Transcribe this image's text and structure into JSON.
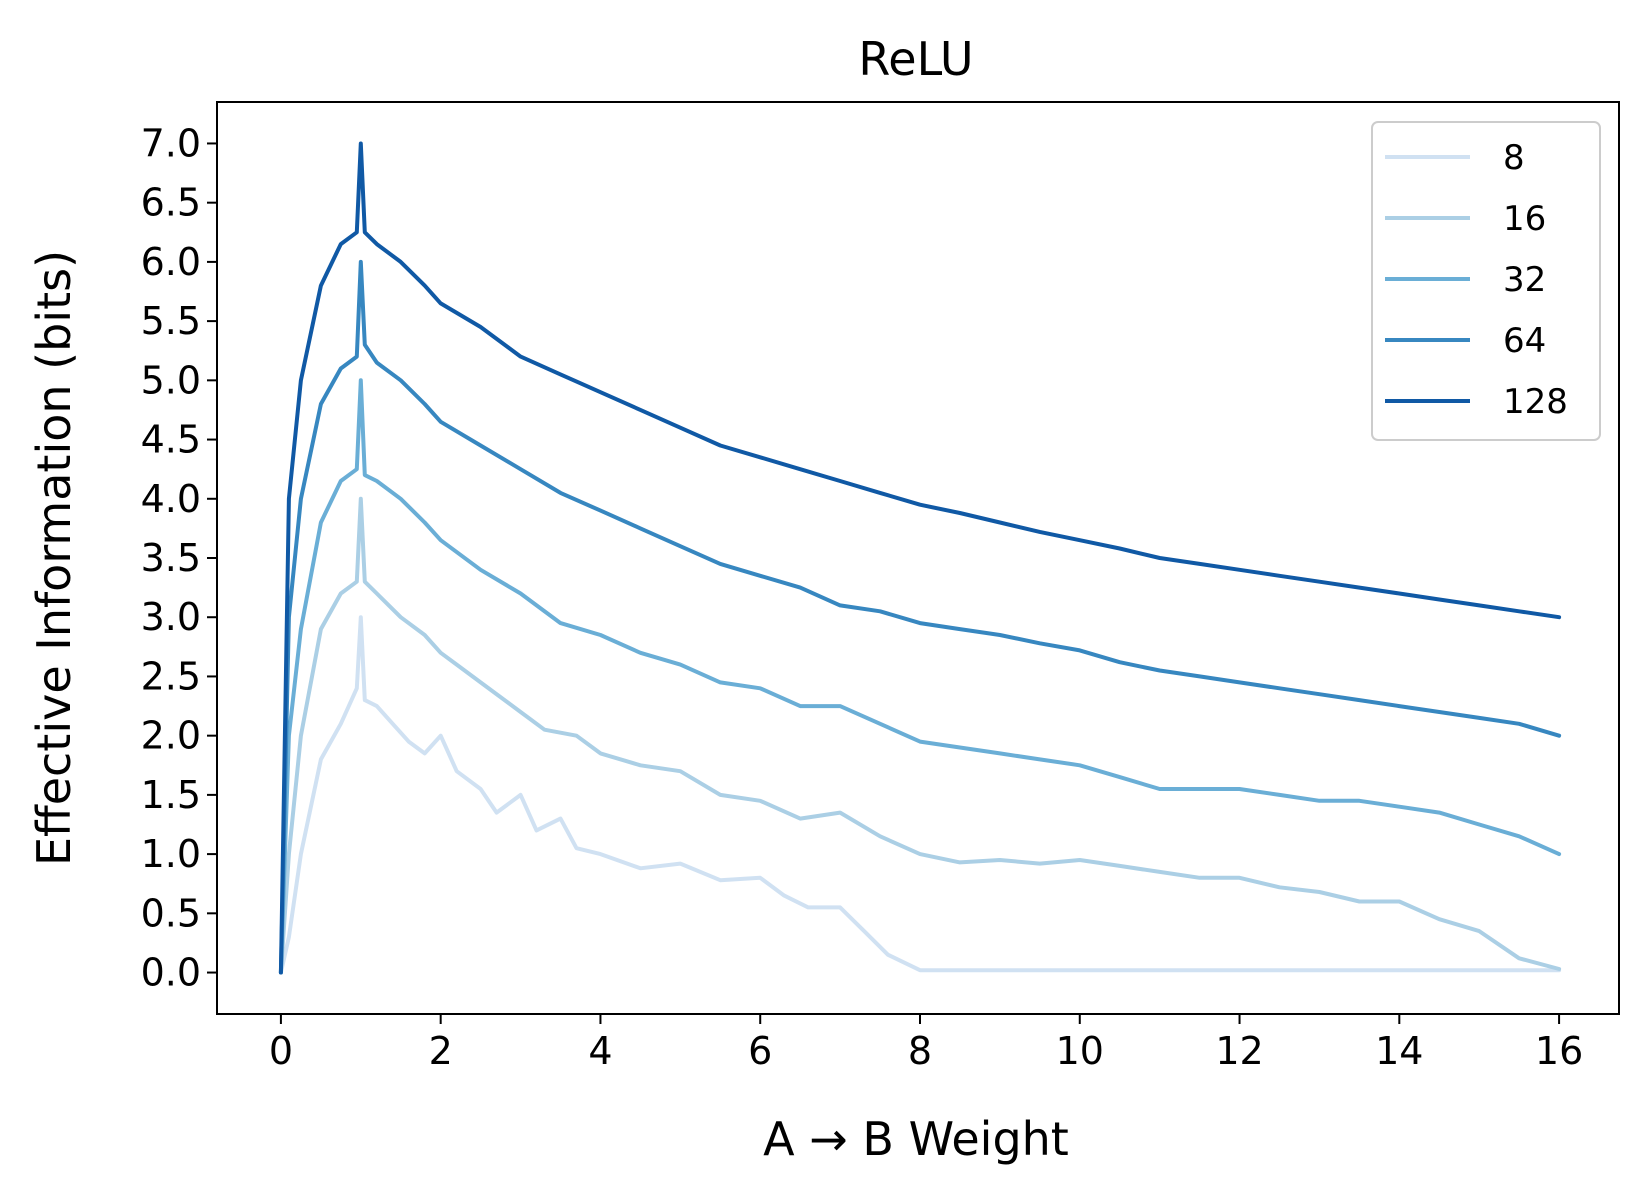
{
  "chart_data": {
    "type": "line",
    "title": "ReLU",
    "xlabel": "A → B Weight",
    "ylabel": "Effective Information (bits)",
    "xlim": [
      -0.8,
      16.75
    ],
    "ylim": [
      -0.35,
      7.35
    ],
    "xticks": [
      "0",
      "2",
      "4",
      "6",
      "8",
      "10",
      "12",
      "14",
      "16"
    ],
    "yticks": [
      "0.0",
      "0.5",
      "1.0",
      "1.5",
      "2.0",
      "2.5",
      "3.0",
      "3.5",
      "4.0",
      "4.5",
      "5.0",
      "5.5",
      "6.0",
      "6.5",
      "7.0"
    ],
    "grid": false,
    "legend_position": "top-right",
    "colors": [
      "#d0e1f2",
      "#abcfe5",
      "#6aaed6",
      "#3787c0",
      "#1059a5"
    ],
    "series": [
      {
        "name": "8",
        "x": [
          0,
          0.1,
          0.25,
          0.5,
          0.75,
          0.95,
          1.0,
          1.05,
          1.2,
          1.4,
          1.6,
          1.8,
          2.0,
          2.2,
          2.5,
          2.7,
          3.0,
          3.2,
          3.5,
          3.7,
          4.0,
          4.5,
          5.0,
          5.5,
          6.0,
          6.3,
          6.6,
          7.0,
          7.3,
          7.6,
          8.0,
          9.0,
          10.0,
          11.0,
          12.0,
          13.0,
          14.0,
          15.0,
          16.0
        ],
        "y": [
          0,
          0.3,
          1.0,
          1.8,
          2.1,
          2.4,
          3.0,
          2.3,
          2.25,
          2.1,
          1.95,
          1.85,
          2.0,
          1.7,
          1.55,
          1.35,
          1.5,
          1.2,
          1.3,
          1.05,
          1.0,
          0.88,
          0.92,
          0.78,
          0.8,
          0.65,
          0.55,
          0.55,
          0.35,
          0.15,
          0.02,
          0.02,
          0.02,
          0.02,
          0.02,
          0.02,
          0.02,
          0.02,
          0.02
        ]
      },
      {
        "name": "16",
        "x": [
          0,
          0.1,
          0.25,
          0.5,
          0.75,
          0.95,
          1.0,
          1.05,
          1.2,
          1.5,
          1.8,
          2.0,
          2.2,
          2.5,
          2.8,
          3.0,
          3.3,
          3.7,
          4.0,
          4.5,
          5.0,
          5.5,
          6.0,
          6.5,
          7.0,
          7.5,
          8.0,
          8.5,
          9.0,
          9.5,
          10.0,
          10.5,
          11.0,
          11.5,
          12.0,
          12.5,
          13.0,
          13.5,
          14.0,
          14.5,
          15.0,
          15.5,
          16.0
        ],
        "y": [
          0,
          1.0,
          2.0,
          2.9,
          3.2,
          3.3,
          4.0,
          3.3,
          3.2,
          3.0,
          2.85,
          2.7,
          2.6,
          2.45,
          2.3,
          2.2,
          2.05,
          2.0,
          1.85,
          1.75,
          1.7,
          1.5,
          1.45,
          1.3,
          1.35,
          1.15,
          1.0,
          0.93,
          0.95,
          0.92,
          0.95,
          0.9,
          0.85,
          0.8,
          0.8,
          0.72,
          0.68,
          0.6,
          0.6,
          0.45,
          0.35,
          0.12,
          0.03
        ]
      },
      {
        "name": "32",
        "x": [
          0,
          0.1,
          0.25,
          0.5,
          0.75,
          0.95,
          1.0,
          1.05,
          1.2,
          1.5,
          1.8,
          2.0,
          2.5,
          3.0,
          3.5,
          4.0,
          4.5,
          5.0,
          5.5,
          6.0,
          6.5,
          7.0,
          7.5,
          8.0,
          8.5,
          9.0,
          9.5,
          10.0,
          10.5,
          11.0,
          11.5,
          12.0,
          12.5,
          13.0,
          13.5,
          14.0,
          14.5,
          15.0,
          15.5,
          16.0
        ],
        "y": [
          0,
          2.0,
          2.9,
          3.8,
          4.15,
          4.25,
          5.0,
          4.2,
          4.15,
          4.0,
          3.8,
          3.65,
          3.4,
          3.2,
          2.95,
          2.85,
          2.7,
          2.6,
          2.45,
          2.4,
          2.25,
          2.25,
          2.1,
          1.95,
          1.9,
          1.85,
          1.8,
          1.75,
          1.65,
          1.55,
          1.55,
          1.55,
          1.5,
          1.45,
          1.45,
          1.4,
          1.35,
          1.25,
          1.15,
          1.0
        ]
      },
      {
        "name": "64",
        "x": [
          0,
          0.1,
          0.25,
          0.5,
          0.75,
          0.95,
          1.0,
          1.05,
          1.2,
          1.5,
          1.8,
          2.0,
          2.5,
          3.0,
          3.5,
          4.0,
          4.5,
          5.0,
          5.5,
          6.0,
          6.5,
          7.0,
          7.5,
          8.0,
          8.5,
          9.0,
          9.5,
          10.0,
          10.5,
          11.0,
          11.5,
          12.0,
          12.5,
          13.0,
          13.5,
          14.0,
          14.5,
          15.0,
          15.5,
          16.0
        ],
        "y": [
          0,
          3.0,
          4.0,
          4.8,
          5.1,
          5.2,
          6.0,
          5.3,
          5.15,
          5.0,
          4.8,
          4.65,
          4.45,
          4.25,
          4.05,
          3.9,
          3.75,
          3.6,
          3.45,
          3.35,
          3.25,
          3.1,
          3.05,
          2.95,
          2.9,
          2.85,
          2.78,
          2.72,
          2.62,
          2.55,
          2.5,
          2.45,
          2.4,
          2.35,
          2.3,
          2.25,
          2.2,
          2.15,
          2.1,
          2.0
        ]
      },
      {
        "name": "128",
        "x": [
          0,
          0.1,
          0.25,
          0.5,
          0.75,
          0.95,
          1.0,
          1.05,
          1.2,
          1.5,
          1.8,
          2.0,
          2.5,
          3.0,
          3.5,
          4.0,
          4.5,
          5.0,
          5.5,
          6.0,
          6.5,
          7.0,
          7.5,
          8.0,
          8.5,
          9.0,
          9.5,
          10.0,
          10.5,
          11.0,
          11.5,
          12.0,
          12.5,
          13.0,
          13.5,
          14.0,
          14.5,
          15.0,
          15.5,
          16.0
        ],
        "y": [
          0,
          4.0,
          5.0,
          5.8,
          6.15,
          6.25,
          7.0,
          6.25,
          6.15,
          6.0,
          5.8,
          5.65,
          5.45,
          5.2,
          5.05,
          4.9,
          4.75,
          4.6,
          4.45,
          4.35,
          4.25,
          4.15,
          4.05,
          3.95,
          3.88,
          3.8,
          3.72,
          3.65,
          3.58,
          3.5,
          3.45,
          3.4,
          3.35,
          3.3,
          3.25,
          3.2,
          3.15,
          3.1,
          3.05,
          3.0
        ]
      }
    ]
  }
}
